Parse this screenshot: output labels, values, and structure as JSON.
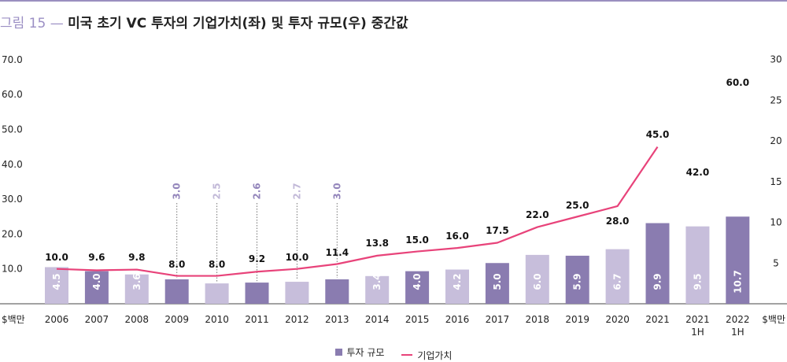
{
  "title": {
    "number": "그림 15",
    "separator": "—",
    "text": "미국 초기 VC 투자의 기업가치(좌) 및 투자 규모(우) 중간값"
  },
  "colors": {
    "bar_dark": "#8a7cb0",
    "bar_light": "#c7bedb",
    "line": "#e8437a",
    "annotation_dark": "#9385bb",
    "annotation_light": "#c2b9d8",
    "accent": "#9b8fc4"
  },
  "legend": {
    "bar": "투자 규모",
    "line": "기업가치"
  },
  "chart_data": {
    "type": "bar+line",
    "categories": [
      "2006",
      "2007",
      "2008",
      "2009",
      "2010",
      "2011",
      "2012",
      "2013",
      "2014",
      "2015",
      "2016",
      "2017",
      "2018",
      "2019",
      "2020",
      "2021",
      "2021\n1H",
      "2022\n1H"
    ],
    "left_axis": {
      "unit": "$백만",
      "range": [
        0,
        70
      ],
      "ticks": [
        "10.0",
        "20.0",
        "30.0",
        "40.0",
        "50.0",
        "60.0",
        "70.0"
      ]
    },
    "right_axis": {
      "unit": "$백만",
      "range": [
        0,
        30
      ],
      "ticks": [
        "5",
        "10",
        "15",
        "20",
        "25",
        "30"
      ]
    },
    "series": [
      {
        "name": "투자 규모",
        "type": "bar",
        "axis": "right",
        "values": [
          4.5,
          4.0,
          3.6,
          3.0,
          2.5,
          2.6,
          2.7,
          3.0,
          3.4,
          4.0,
          4.2,
          5.0,
          6.0,
          5.9,
          6.7,
          9.9,
          9.5,
          10.7
        ],
        "labels": [
          "4.5",
          "4.0",
          "3.6",
          "3.0",
          "2.5",
          "2.6",
          "2.7",
          "3.0",
          "3.4",
          "4.0",
          "4.2",
          "5.0",
          "6.0",
          "5.9",
          "6.7",
          "9.9",
          "9.5",
          "10.7"
        ],
        "shade": [
          "light",
          "dark",
          "light",
          "dark",
          "light",
          "dark",
          "light",
          "dark",
          "light",
          "dark",
          "light",
          "dark",
          "light",
          "dark",
          "light",
          "dark",
          "light",
          "dark"
        ]
      },
      {
        "name": "기업가치",
        "type": "line",
        "axis": "left",
        "values": [
          10.0,
          9.6,
          9.8,
          8.0,
          8.0,
          9.2,
          10.0,
          11.4,
          13.8,
          15.0,
          16.0,
          17.5,
          22.0,
          25.0,
          28.0,
          45.0,
          null,
          60.0
        ],
        "labels": [
          "10.0",
          "9.6",
          "9.8",
          "8.0",
          "8.0",
          "9.2",
          "10.0",
          "11.4",
          "13.8",
          "15.0",
          "16.0",
          "17.5",
          "22.0",
          "25.0",
          "28.0",
          "45.0",
          "42.0",
          "60.0"
        ]
      }
    ],
    "grid": false
  }
}
